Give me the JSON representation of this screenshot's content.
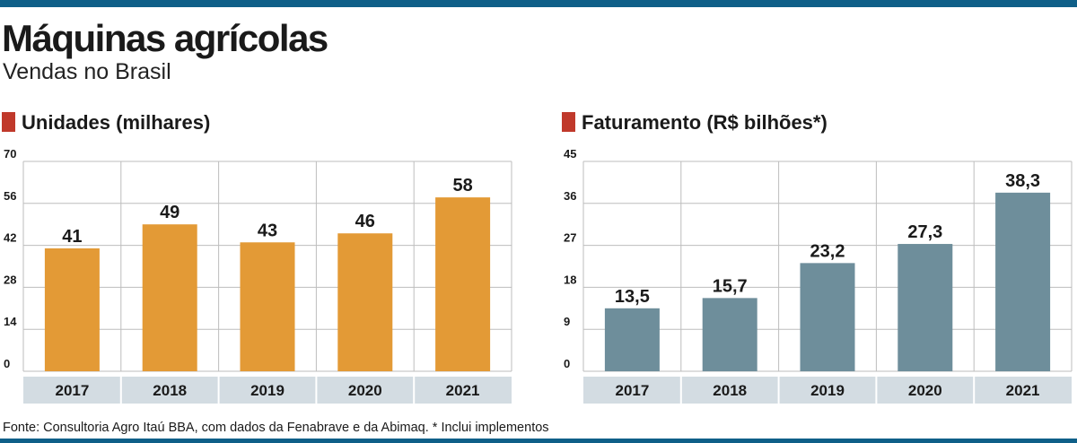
{
  "header": {
    "title": "Máquinas agrícolas",
    "subtitle": "Vendas no Brasil"
  },
  "colors": {
    "accent_rule": "#0f5f88",
    "marker": "#c0392b",
    "bar_units": "#e39a36",
    "bar_revenue": "#6e8e9b",
    "axis_band": "#d3dce2",
    "grid": "#bdbdbd"
  },
  "chart_data": [
    {
      "type": "bar",
      "title": "Unidades (milhares)",
      "categories": [
        "2017",
        "2018",
        "2019",
        "2020",
        "2021"
      ],
      "values": [
        41,
        49,
        43,
        46,
        58
      ],
      "value_labels": [
        "41",
        "49",
        "43",
        "46",
        "58"
      ],
      "ylim": [
        0,
        70
      ],
      "yticks": [
        "0",
        "14",
        "28",
        "42",
        "56",
        "70"
      ],
      "grid": true
    },
    {
      "type": "bar",
      "title": "Faturamento (R$ bilhões*)",
      "categories": [
        "2017",
        "2018",
        "2019",
        "2020",
        "2021"
      ],
      "values": [
        13.5,
        15.7,
        23.2,
        27.3,
        38.3
      ],
      "value_labels": [
        "13,5",
        "15,7",
        "23,2",
        "27,3",
        "38,3"
      ],
      "ylim": [
        0,
        45
      ],
      "yticks": [
        "0",
        "9",
        "18",
        "27",
        "36",
        "45"
      ],
      "grid": true
    }
  ],
  "footer": {
    "source": "Fonte: Consultoria Agro Itaú BBA, com dados da Fenabrave e da Abimaq. * Inclui implementos"
  }
}
